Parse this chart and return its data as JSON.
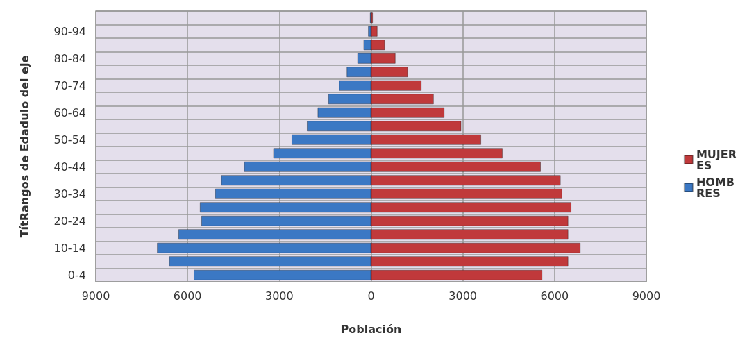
{
  "chart_data": {
    "type": "bar",
    "orientation": "horizontal",
    "stacked": true,
    "xlabel": "Población",
    "ylabel": "TítRangos de Edadulo del eje",
    "categories": [
      null,
      "90-94",
      null,
      "80-84",
      null,
      "70-74",
      null,
      "60-64",
      null,
      "50-54",
      null,
      "40-44",
      null,
      "30-34",
      null,
      "20-24",
      null,
      "10-14",
      null,
      "0-4"
    ],
    "series": [
      {
        "name": "MUJERES",
        "color": "#c0393b",
        "values": [
          60,
          210,
          450,
          800,
          1200,
          1650,
          2050,
          2400,
          2950,
          3600,
          4300,
          5550,
          6200,
          6250,
          6550,
          6450,
          6450,
          6850,
          6450,
          5600
        ]
      },
      {
        "name": "HOMBRES",
        "color": "#3b78c4",
        "values": [
          -40,
          -100,
          -250,
          -450,
          -800,
          -1050,
          -1400,
          -1750,
          -2100,
          -2600,
          -3200,
          -4150,
          -4900,
          -5100,
          -5600,
          -5550,
          -6300,
          -7000,
          -6600,
          -5800
        ]
      }
    ],
    "xlim": [
      -9000,
      9000
    ],
    "xticks": [
      {
        "value": -9000,
        "label": "9000"
      },
      {
        "value": -6000,
        "label": "6000"
      },
      {
        "value": -3000,
        "label": "3000"
      },
      0,
      3000,
      6000,
      9000
    ],
    "grid": true,
    "legend": "right"
  }
}
